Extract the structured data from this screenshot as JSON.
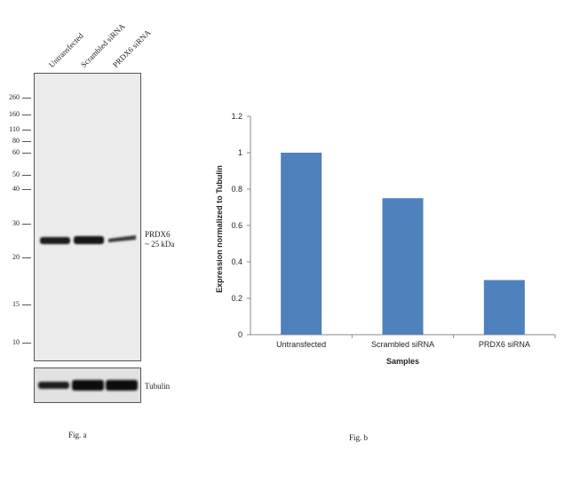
{
  "fig_a": {
    "lanes": [
      "Untransfected",
      "Scrambled siRNA",
      "PRDX6 siRNA"
    ],
    "markers": [
      "260",
      "160",
      "110",
      "80",
      "60",
      "50",
      "40",
      "30",
      "20",
      "15",
      "10"
    ],
    "band_label_1": "PRDX6",
    "band_label_2": "~ 25 kDa",
    "loading_label": "Tubulin",
    "caption": "Fig. a"
  },
  "fig_b": {
    "caption": "Fig. b"
  },
  "chart_data": {
    "type": "bar",
    "categories": [
      "Untransfected",
      "Scrambled siRNA",
      "PRDX6 siRNA"
    ],
    "values": [
      1.0,
      0.75,
      0.3
    ],
    "xlabel": "Samples",
    "ylabel": "Expression  normalized to Tubulin",
    "ylim": [
      0,
      1.2
    ],
    "yticks": [
      "0",
      "0.2",
      "0.4",
      "0.6",
      "0.8",
      "1",
      "1.2"
    ],
    "bar_color": "#4f81bd",
    "grid": false,
    "legend": "none"
  }
}
